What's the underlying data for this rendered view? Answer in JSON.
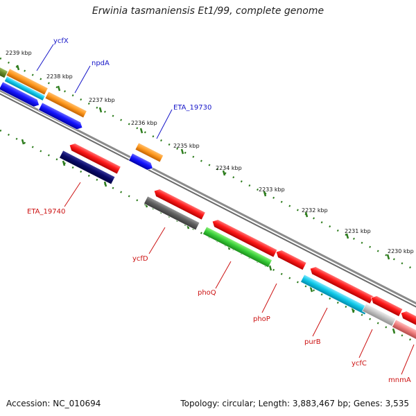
{
  "title": "Erwinia tasmaniensis Et1/99, complete genome",
  "accession": "Accession: NC_010694",
  "summary": "Topology: circular; Length: 3,883,467 bp; Genes: 3,535",
  "colors": {
    "backbone": "#808080",
    "tick": "#2e7d1e",
    "label_plus": "#1515c8",
    "label_minus": "#cc1111"
  },
  "ticks": [
    "2239 kbp",
    "2238 kbp",
    "2237 kbp",
    "2236 kbp",
    "2235 kbp",
    "2234 kbp",
    "2233 kbp",
    "2232 kbp",
    "2231 kbp",
    "2230 kbp"
  ],
  "gene_labels": [
    "ycfX",
    "npdA",
    "ETA_19730",
    "ETA_19740",
    "ycfD",
    "phoQ",
    "phoP",
    "purB",
    "ycfC",
    "mnmA"
  ]
}
